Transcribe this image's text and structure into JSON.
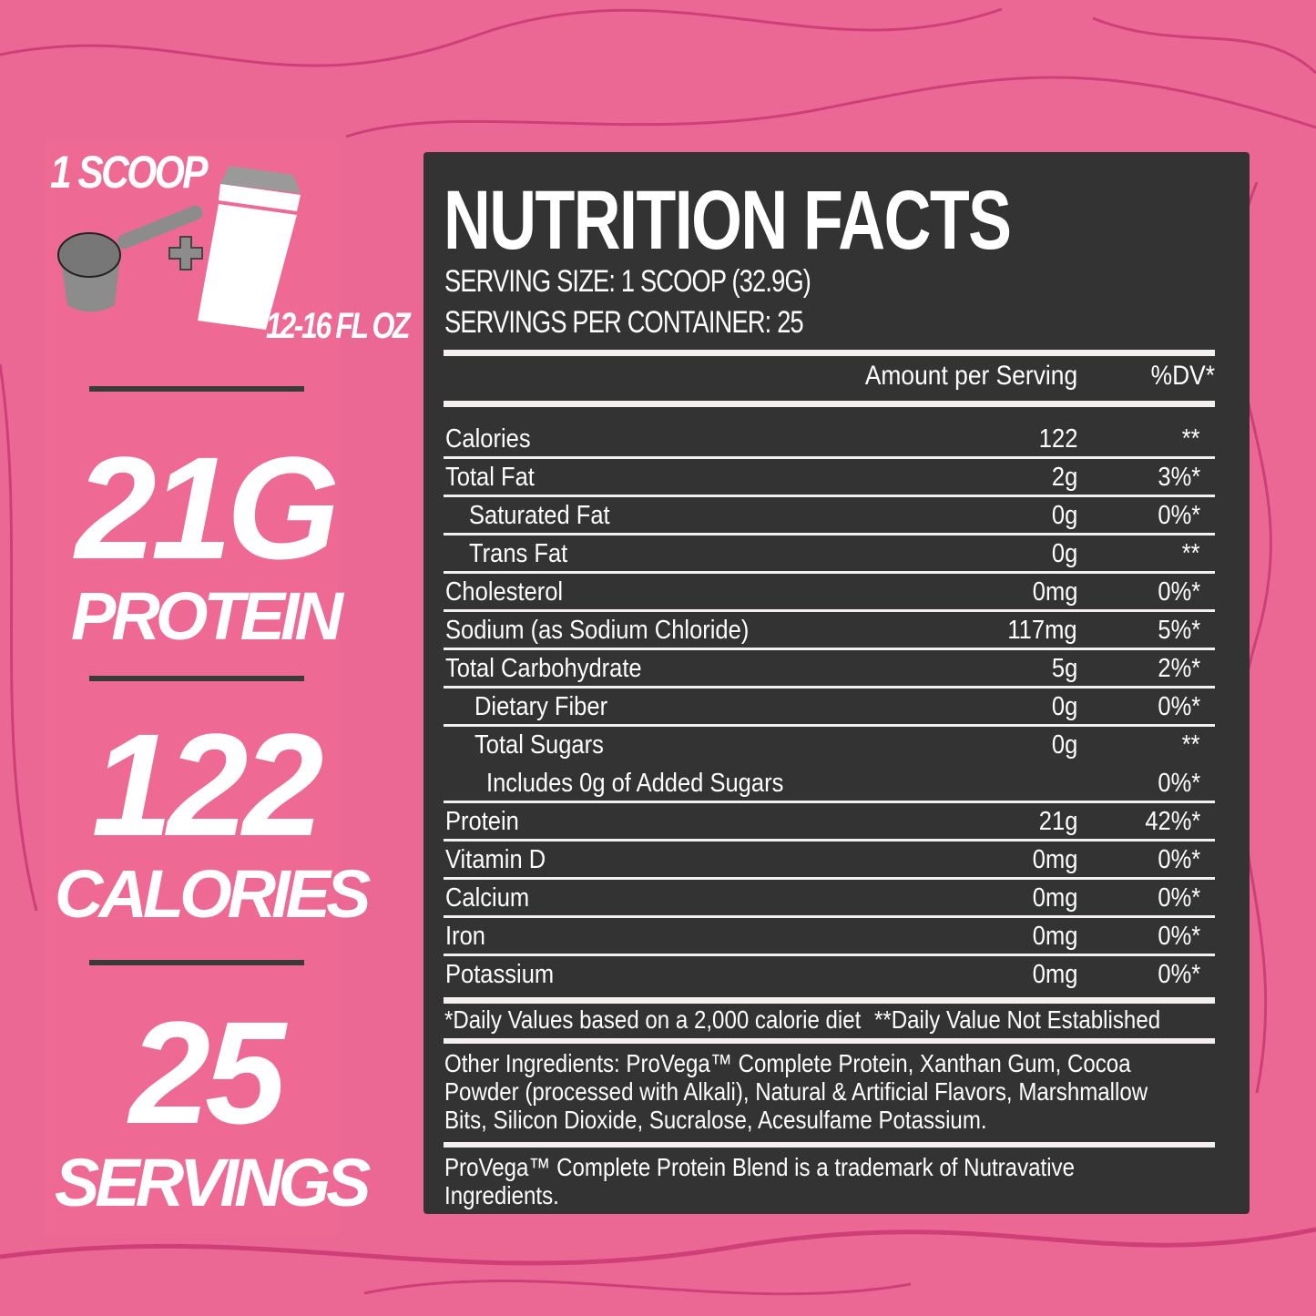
{
  "serving_prep": {
    "scoop_label": "1 SCOOP",
    "water_label": "12-16 FL OZ",
    "icons": [
      "scoop-icon",
      "plus-icon",
      "shaker-bottle-icon"
    ]
  },
  "stats": [
    {
      "value": "21G",
      "label": "PROTEIN"
    },
    {
      "value": "122",
      "label": "CALORIES"
    },
    {
      "value": "25",
      "label": "SERVINGS"
    }
  ],
  "colors": {
    "background": "#ec6894",
    "contour": "#cf3f77",
    "panel": "#333333",
    "text": "#ffffff"
  },
  "facts": {
    "title": "NUTRITION FACTS",
    "serving_size": "SERVING SIZE: 1 SCOOP (32.9G)",
    "servings_per_container": "SERVINGS PER CONTAINER: 25",
    "header_amount": "Amount per Serving",
    "header_dv": "%DV*",
    "rows": [
      {
        "name": "Calories",
        "amount": "122",
        "dv": "**",
        "indent": 0
      },
      {
        "name": "Total Fat",
        "amount": "2g",
        "dv": "3%*",
        "indent": 0
      },
      {
        "name": "Saturated Fat",
        "amount": "0g",
        "dv": "0%*",
        "indent": 1
      },
      {
        "name": "Trans Fat",
        "amount": "0g",
        "dv": "**",
        "indent": 1
      },
      {
        "name": "Cholesterol",
        "amount": "0mg",
        "dv": "0%*",
        "indent": 0
      },
      {
        "name": "Sodium (as Sodium Chloride)",
        "amount": "117mg",
        "dv": "5%*",
        "indent": 0
      },
      {
        "name": "Total Carbohydrate",
        "amount": "5g",
        "dv": "2%*",
        "indent": 0
      },
      {
        "name": "Dietary Fiber",
        "amount": "0g",
        "dv": "0%*",
        "indent": 2
      },
      {
        "name": "Total Sugars",
        "amount": "0g",
        "dv": "**",
        "indent": 2
      },
      {
        "name": "Includes 0g of Added Sugars",
        "amount": "",
        "dv": "0%*",
        "indent": 3
      },
      {
        "name": "Protein",
        "amount": "21g",
        "dv": "42%*",
        "indent": 0
      },
      {
        "name": "Vitamin D",
        "amount": "0mg",
        "dv": "0%*",
        "indent": 0
      },
      {
        "name": "Calcium",
        "amount": "0mg",
        "dv": "0%*",
        "indent": 0
      },
      {
        "name": "Iron",
        "amount": "0mg",
        "dv": "0%*",
        "indent": 0
      },
      {
        "name": "Potassium",
        "amount": "0mg",
        "dv": "0%*",
        "indent": 0
      }
    ],
    "footnote_dv": "*Daily Values based on a 2,000 calorie diet",
    "footnote_not_established": "**Daily Value Not Established",
    "ingredients": "Other Ingredients: ProVega™ Complete Protein, Xanthan Gum, Cocoa Powder (processed with Alkali), Natural & Artificial Flavors, Marshmallow Bits, Silicon Dioxide, Sucralose, Acesulfame Potassium.",
    "trademark": "ProVega™ Complete Protein Blend is a trademark of Nutravative Ingredients."
  }
}
